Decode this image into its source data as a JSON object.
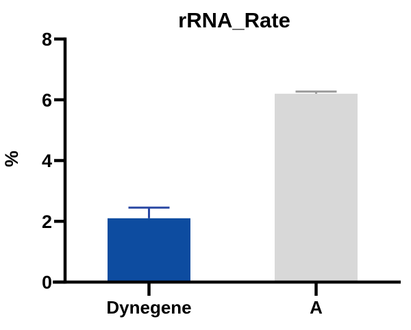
{
  "chart_data": {
    "type": "bar",
    "title": "rRNA_Rate",
    "ylabel": "%",
    "xlabel": "",
    "categories": [
      "Dynegene",
      "A"
    ],
    "values": [
      2.1,
      6.2
    ],
    "errors_plus": [
      0.35,
      0.07
    ],
    "bar_colors": [
      "#0d4ca0",
      "#d8d8d8"
    ],
    "error_colors": [
      "#2a48a4",
      "#9a9a9a"
    ],
    "ylim": [
      0,
      8
    ],
    "yticks": [
      0,
      2,
      4,
      6,
      8
    ],
    "axis_color": "#000000",
    "background": "#ffffff",
    "grid": false,
    "legend": "none"
  }
}
